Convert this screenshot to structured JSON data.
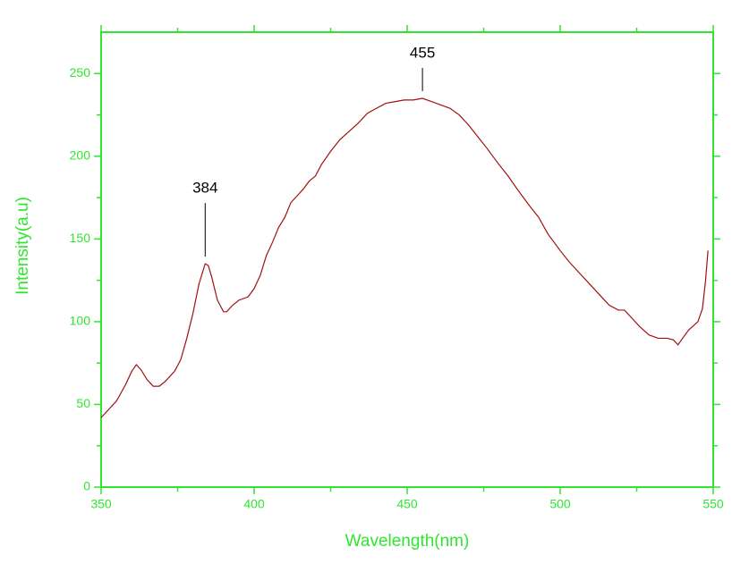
{
  "chart_data": {
    "type": "line",
    "x_label": "Wavelength(nm)",
    "y_label": "Intensity(a.u)",
    "axis_color": "#2fe62f",
    "x": [
      350,
      352,
      355,
      358,
      360,
      361.5,
      363,
      365,
      367,
      369,
      371,
      374,
      376,
      378,
      380,
      382,
      384,
      385,
      386,
      388,
      390,
      391,
      393,
      395,
      398,
      400,
      402,
      404,
      406,
      408,
      410,
      412,
      414,
      416,
      418,
      420,
      422,
      425,
      428,
      431,
      434,
      437,
      440,
      443,
      446,
      449,
      452,
      455,
      458,
      461,
      464,
      467,
      470,
      473,
      476,
      480,
      483,
      486,
      490,
      493,
      496,
      500,
      503,
      506,
      510,
      513,
      516,
      519,
      521,
      523,
      526,
      529,
      532,
      535,
      537,
      538.5,
      540,
      542,
      545,
      546.5,
      547.5,
      548.3
    ],
    "series": [
      {
        "color": "#a01010",
        "values": [
          42,
          46,
          52,
          62,
          70,
          74,
          71,
          65,
          61,
          61,
          64,
          70,
          77,
          90,
          105,
          123,
          135,
          134,
          128,
          113,
          106,
          106,
          110,
          113,
          115,
          120,
          128,
          140,
          148,
          157,
          163,
          172,
          176,
          180,
          185,
          188,
          195,
          203,
          210,
          215,
          220,
          226,
          229,
          232,
          233,
          234,
          234,
          235,
          233,
          231,
          229,
          225,
          219,
          212,
          205,
          195,
          188,
          180,
          170,
          163,
          153,
          143,
          136,
          130,
          122,
          116,
          110,
          107,
          107,
          103,
          97,
          92,
          90,
          90,
          89,
          86,
          90,
          95,
          100,
          108,
          125,
          143
        ]
      }
    ],
    "xlim": [
      350,
      550
    ],
    "ylim": [
      0,
      275
    ],
    "xticks": [
      350,
      400,
      450,
      500,
      550
    ],
    "yticks": [
      0,
      50,
      100,
      150,
      200,
      250
    ],
    "xminorticks": [
      375,
      425,
      475,
      525
    ],
    "yminorticks": [
      25,
      75,
      125,
      175,
      225
    ],
    "annotations": [
      384,
      455
    ]
  }
}
